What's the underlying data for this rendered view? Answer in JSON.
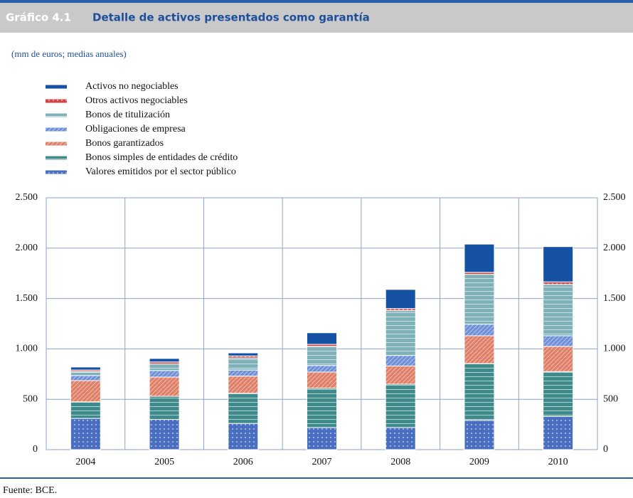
{
  "chart_data": {
    "type": "stacked_bar",
    "figure_label": "Gráfico 4.1",
    "title": "Detalle de activos presentados como garantía",
    "subtitle": "(mm de euros; medias anuales)",
    "source": "Fuente: BCE.",
    "categories": [
      "2004",
      "2005",
      "2006",
      "2007",
      "2008",
      "2009",
      "2010"
    ],
    "series": [
      {
        "name": "Valores emitidos por el sector público",
        "color": "#4a6fc1",
        "values": [
          310,
          300,
          260,
          220,
          220,
          290,
          330
        ]
      },
      {
        "name": "Bonos simples de entidades de crédito",
        "color": "#3f8a8a",
        "values": [
          165,
          230,
          300,
          390,
          430,
          565,
          445
        ]
      },
      {
        "name": "Bonos garantizados",
        "color": "#e07f68",
        "values": [
          210,
          190,
          170,
          160,
          180,
          275,
          250
        ]
      },
      {
        "name": "Obligaciones de empresa",
        "color": "#6f90d8",
        "values": [
          50,
          65,
          60,
          65,
          105,
          115,
          105
        ]
      },
      {
        "name": "Bonos de titulización",
        "color": "#7fb2b8",
        "values": [
          40,
          65,
          120,
          190,
          445,
          495,
          510
        ]
      },
      {
        "name": "Otros activos negociables",
        "color": "#d04444",
        "values": [
          15,
          20,
          20,
          20,
          20,
          20,
          25
        ]
      },
      {
        "name": "Activos no negociables",
        "color": "#1552a3",
        "values": [
          30,
          35,
          30,
          115,
          190,
          280,
          350
        ]
      }
    ],
    "ylim": [
      0,
      2500
    ],
    "yticks": [
      0,
      500,
      {
        "value": 1000,
        "label": "1.000"
      },
      {
        "value": 1500,
        "label": "1.500"
      },
      {
        "value": 2000,
        "label": "2.000"
      },
      {
        "value": 2500,
        "label": "2.500"
      }
    ],
    "grid": true
  }
}
